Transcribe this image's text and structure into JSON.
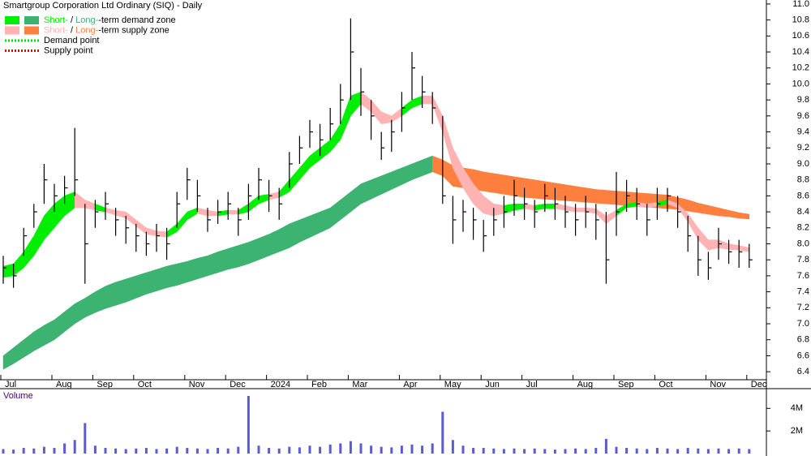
{
  "chart_data": {
    "type": "ohlc",
    "title": "Smartgroup Corporation Ltd Ordinary (SIQ) - Daily",
    "legend": [
      {
        "label_parts": [
          "Short-",
          " / ",
          "Long-",
          "-term demand zone"
        ],
        "colors": [
          "#00ee00",
          "#3cb371"
        ]
      },
      {
        "label_parts": [
          "Short-",
          " / ",
          "Long-",
          "-term supply zone"
        ],
        "colors": [
          "#ffb3b3",
          "#ff7f3f"
        ]
      },
      {
        "label": "Demand point",
        "color": "#00dd00",
        "style": "dotted"
      },
      {
        "label": "Supply point",
        "color": "#ee0000",
        "style": "dotted"
      }
    ],
    "categories": [
      "Jul",
      null,
      null,
      null,
      null,
      "Aug",
      null,
      null,
      null,
      "Sep",
      null,
      null,
      null,
      "Oct",
      null,
      null,
      null,
      null,
      "Nov",
      null,
      null,
      null,
      "Dec",
      null,
      null,
      null,
      "2024",
      null,
      null,
      null,
      "Feb",
      null,
      null,
      null,
      "Mar",
      null,
      null,
      null,
      null,
      "Apr",
      null,
      null,
      null,
      "May",
      null,
      null,
      null,
      "Jun",
      null,
      null,
      null,
      "Jul",
      null,
      null,
      null,
      null,
      "Aug",
      null,
      null,
      null,
      "Sep",
      null,
      null,
      null,
      "Oct",
      null,
      null,
      null,
      null,
      "Nov",
      null,
      null,
      null,
      "Dec"
    ],
    "high": [
      7.85,
      7.75,
      8.2,
      8.5,
      9.0,
      8.75,
      8.85,
      9.45,
      8.5,
      8.55,
      8.65,
      8.45,
      8.35,
      8.25,
      8.15,
      8.25,
      8.2,
      8.65,
      8.95,
      8.8,
      8.45,
      8.55,
      8.65,
      8.45,
      8.75,
      8.95,
      8.8,
      8.7,
      9.15,
      9.35,
      9.55,
      9.5,
      9.7,
      10.0,
      10.82,
      10.2,
      9.8,
      9.4,
      9.55,
      9.9,
      10.4,
      10.1,
      9.9,
      9.6,
      8.6,
      8.55,
      8.45,
      8.3,
      8.45,
      8.6,
      8.8,
      8.7,
      8.55,
      8.75,
      8.7,
      8.6,
      8.5,
      8.6,
      8.5,
      8.4,
      8.9,
      8.8,
      8.7,
      8.5,
      8.7,
      8.7,
      8.6,
      8.35,
      8.1,
      7.9,
      8.2,
      8.05,
      8.05,
      8.0
    ],
    "low": [
      7.5,
      7.45,
      7.85,
      8.2,
      8.5,
      8.4,
      8.5,
      8.6,
      7.5,
      8.2,
      8.3,
      8.1,
      8.0,
      7.9,
      7.85,
      7.9,
      7.8,
      8.2,
      8.55,
      8.4,
      8.15,
      8.25,
      8.3,
      8.1,
      8.3,
      8.55,
      8.4,
      8.3,
      8.7,
      9.0,
      9.2,
      9.1,
      9.3,
      9.5,
      9.8,
      9.6,
      9.3,
      9.05,
      9.15,
      9.4,
      9.8,
      9.7,
      9.5,
      8.5,
      8.0,
      8.15,
      8.05,
      7.9,
      8.1,
      8.2,
      8.35,
      8.3,
      8.2,
      8.4,
      8.3,
      8.2,
      8.1,
      8.2,
      8.05,
      7.5,
      8.1,
      8.4,
      8.3,
      8.1,
      8.3,
      8.4,
      8.2,
      7.9,
      7.6,
      7.55,
      7.8,
      7.75,
      7.7,
      7.7
    ],
    "close": [
      7.7,
      7.6,
      8.1,
      8.4,
      8.8,
      8.6,
      8.7,
      8.8,
      8.0,
      8.4,
      8.5,
      8.3,
      8.2,
      8.1,
      8.0,
      8.1,
      8.0,
      8.5,
      8.8,
      8.6,
      8.3,
      8.4,
      8.5,
      8.3,
      8.6,
      8.8,
      8.6,
      8.5,
      9.0,
      9.2,
      9.4,
      9.3,
      9.5,
      9.8,
      10.4,
      9.9,
      9.6,
      9.2,
      9.4,
      9.7,
      10.2,
      9.9,
      9.7,
      8.6,
      8.3,
      8.4,
      8.3,
      8.1,
      8.3,
      8.4,
      8.6,
      8.5,
      8.4,
      8.6,
      8.5,
      8.4,
      8.3,
      8.4,
      8.3,
      7.8,
      8.4,
      8.6,
      8.5,
      8.3,
      8.5,
      8.6,
      8.4,
      8.1,
      7.8,
      7.7,
      8.0,
      7.9,
      7.9,
      7.8
    ],
    "short_zone": {
      "upper": [
        7.72,
        7.75,
        7.9,
        8.1,
        8.35,
        8.5,
        8.6,
        8.65,
        8.55,
        8.5,
        8.45,
        8.42,
        8.4,
        8.3,
        8.2,
        8.16,
        8.15,
        8.25,
        8.4,
        8.45,
        8.42,
        8.4,
        8.42,
        8.42,
        8.5,
        8.6,
        8.62,
        8.65,
        8.8,
        8.95,
        9.1,
        9.2,
        9.3,
        9.5,
        9.85,
        9.9,
        9.8,
        9.65,
        9.6,
        9.7,
        9.8,
        9.85,
        9.85,
        9.6,
        9.2,
        8.95,
        8.75,
        8.6,
        8.5,
        8.48,
        8.5,
        8.5,
        8.48,
        8.5,
        8.5,
        8.48,
        8.45,
        8.45,
        8.44,
        8.35,
        8.42,
        8.5,
        8.52,
        8.5,
        8.52,
        8.55,
        8.5,
        8.38,
        8.2,
        8.05,
        8.05,
        8.0,
        7.98,
        7.95
      ],
      "lower": [
        7.58,
        7.6,
        7.7,
        7.85,
        8.05,
        8.2,
        8.35,
        8.45,
        8.45,
        8.42,
        8.4,
        8.36,
        8.32,
        8.22,
        8.12,
        8.1,
        8.08,
        8.15,
        8.3,
        8.38,
        8.35,
        8.35,
        8.37,
        8.37,
        8.4,
        8.5,
        8.55,
        8.58,
        8.65,
        8.8,
        8.95,
        9.05,
        9.15,
        9.3,
        9.6,
        9.75,
        9.65,
        9.5,
        9.52,
        9.6,
        9.7,
        9.75,
        9.75,
        9.4,
        8.95,
        8.7,
        8.5,
        8.38,
        8.35,
        8.38,
        8.42,
        8.44,
        8.42,
        8.44,
        8.44,
        8.42,
        8.4,
        8.4,
        8.38,
        8.25,
        8.35,
        8.45,
        8.47,
        8.45,
        8.47,
        8.5,
        8.45,
        8.28,
        8.05,
        7.92,
        7.95,
        7.93,
        7.92,
        7.9
      ]
    },
    "long_zone": {
      "upper": [
        6.6,
        6.7,
        6.8,
        6.9,
        6.98,
        7.05,
        7.15,
        7.25,
        7.32,
        7.4,
        7.47,
        7.52,
        7.56,
        7.6,
        7.64,
        7.68,
        7.72,
        7.75,
        7.78,
        7.82,
        7.85,
        7.9,
        7.94,
        7.98,
        8.02,
        8.07,
        8.12,
        8.18,
        8.25,
        8.3,
        8.35,
        8.4,
        8.45,
        8.55,
        8.65,
        8.75,
        8.8,
        8.85,
        8.9,
        8.95,
        9.0,
        9.05,
        9.1,
        9.05,
        8.98,
        8.95,
        8.93,
        8.9,
        8.88,
        8.86,
        8.84,
        8.82,
        8.8,
        8.78,
        8.76,
        8.74,
        8.72,
        8.7,
        8.68,
        8.67,
        8.66,
        8.65,
        8.64,
        8.63,
        8.62,
        8.61,
        8.58,
        8.55,
        8.51,
        8.48,
        8.45,
        8.42,
        8.39,
        8.37
      ],
      "lower": [
        6.43,
        6.5,
        6.58,
        6.66,
        6.73,
        6.8,
        6.9,
        7.0,
        7.08,
        7.14,
        7.19,
        7.23,
        7.27,
        7.32,
        7.37,
        7.41,
        7.45,
        7.48,
        7.52,
        7.56,
        7.6,
        7.64,
        7.68,
        7.71,
        7.75,
        7.8,
        7.85,
        7.9,
        7.95,
        8.02,
        8.08,
        8.14,
        8.2,
        8.3,
        8.4,
        8.5,
        8.56,
        8.62,
        8.68,
        8.74,
        8.8,
        8.85,
        8.9,
        8.85,
        8.72,
        8.7,
        8.68,
        8.66,
        8.64,
        8.62,
        8.6,
        8.58,
        8.57,
        8.56,
        8.55,
        8.54,
        8.53,
        8.52,
        8.51,
        8.5,
        8.49,
        8.48,
        8.47,
        8.46,
        8.45,
        8.44,
        8.43,
        8.41,
        8.39,
        8.37,
        8.35,
        8.34,
        8.32,
        8.31
      ]
    },
    "ylim": [
      6.3,
      11.05
    ],
    "yticks": [
      6.4,
      6.6,
      6.8,
      {
        "value": 7.0,
        "label": "7.0"
      },
      7.2,
      7.4,
      7.6,
      7.8,
      {
        "value": 8.0,
        "label": "8.0"
      },
      8.2,
      8.4,
      8.6,
      8.8,
      {
        "value": 9.0,
        "label": "9.0"
      },
      9.2,
      9.4,
      9.6,
      9.8,
      {
        "value": 10.0,
        "label": "10.0"
      },
      10.2,
      10.4,
      10.6,
      10.8,
      {
        "value": 11.0,
        "label": "11.0"
      }
    ],
    "bar_color": "#000000",
    "volume": {
      "title": "Volume",
      "color": "#5b5bd6",
      "values": [
        400000,
        350000,
        500000,
        450000,
        600000,
        500000,
        900000,
        1200000,
        2700000,
        700000,
        500000,
        450000,
        400000,
        450000,
        500000,
        400000,
        450000,
        600000,
        500000,
        450000,
        400000,
        500000,
        450000,
        600000,
        5100000,
        700000,
        500000,
        450000,
        600000,
        550000,
        700000,
        600000,
        800000,
        900000,
        1100000,
        900000,
        700000,
        600000,
        550000,
        700000,
        800000,
        700000,
        900000,
        3700000,
        1200000,
        700000,
        500000,
        500000,
        450000,
        400000,
        450000,
        400000,
        450000,
        400000,
        350000,
        400000,
        450000,
        400000,
        500000,
        1300000,
        600000,
        500000,
        450000,
        400000,
        500000,
        450000,
        400000,
        500000,
        450000,
        400000,
        450000,
        400000,
        450000,
        400000
      ],
      "ylim": [
        0,
        5600000
      ],
      "yticks": [
        {
          "value": 2000000,
          "label": "2M"
        },
        {
          "value": 4000000,
          "label": "4M"
        }
      ]
    }
  }
}
